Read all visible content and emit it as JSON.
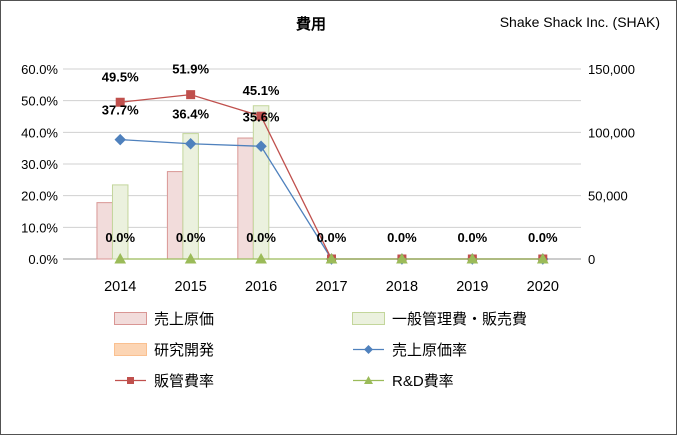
{
  "chart_data": {
    "type": "bar+line",
    "title": "費用",
    "company": "Shake Shack Inc. (SHAK)",
    "categories": [
      "2014",
      "2015",
      "2016",
      "2017",
      "2018",
      "2019",
      "2020"
    ],
    "left_axis": {
      "unit": "%",
      "min": 0,
      "max": 60,
      "step": 10,
      "tick_labels": [
        "0.0%",
        "10.0%",
        "20.0%",
        "30.0%",
        "40.0%",
        "50.0%",
        "60.0%"
      ]
    },
    "right_axis": {
      "min": 0,
      "max": 150000,
      "step": 50000,
      "tick_labels": [
        "0",
        "50,000",
        "100,000",
        "150,000"
      ]
    },
    "grid": true,
    "legend_position": "bottom",
    "bar_series": [
      {
        "name": "売上原価",
        "axis": "right",
        "color": "#f2dcdb",
        "border": "#d99694",
        "values": [
          44500,
          69000,
          95500,
          0,
          0,
          0,
          0
        ]
      },
      {
        "name": "一般管理費・販売費",
        "axis": "right",
        "color": "#ebf1de",
        "border": "#c3d69b",
        "values": [
          58500,
          99000,
          121000,
          0,
          0,
          0,
          0
        ]
      },
      {
        "name": "研究開発",
        "axis": "right",
        "color": "#fcd5b4",
        "border": "#fac090",
        "values": [
          0,
          0,
          0,
          0,
          0,
          0,
          0
        ]
      }
    ],
    "line_series": [
      {
        "name": "売上原価率",
        "axis": "left",
        "color": "#4f81bd",
        "marker": "diamond",
        "values": [
          37.7,
          36.4,
          35.6,
          0,
          0,
          0,
          0
        ],
        "labels": [
          "37.7%",
          "36.4%",
          "35.6%",
          "",
          "",
          "",
          ""
        ]
      },
      {
        "name": "販管費率",
        "axis": "left",
        "color": "#c0504d",
        "marker": "square",
        "values": [
          49.5,
          51.9,
          45.1,
          0,
          0,
          0,
          0
        ],
        "labels": [
          "49.5%",
          "51.9%",
          "45.1%",
          "",
          "",
          "",
          ""
        ]
      },
      {
        "name": "R&D費率",
        "axis": "left",
        "color": "#9bbb59",
        "marker": "triangle",
        "values": [
          0,
          0,
          0,
          0,
          0,
          0,
          0
        ],
        "labels": [
          "0.0%",
          "0.0%",
          "0.0%",
          "0.0%",
          "0.0%",
          "0.0%",
          "0.0%"
        ]
      }
    ]
  }
}
